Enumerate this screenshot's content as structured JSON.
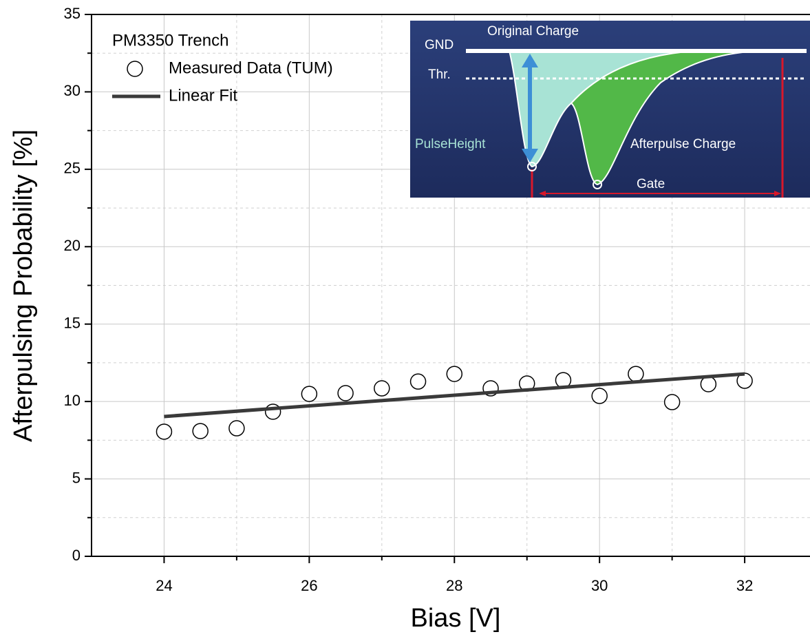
{
  "chart_data": {
    "type": "scatter",
    "xlabel": "Bias [V]",
    "ylabel": "Afterpulsing Probability [%]",
    "legend_title": "PM3350 Trench",
    "xlim": [
      23,
      32.9
    ],
    "ylim": [
      0,
      35
    ],
    "xticks": [
      24,
      26,
      28,
      30,
      32
    ],
    "yticks": [
      0,
      5,
      10,
      15,
      20,
      25,
      30,
      35
    ],
    "xminor": [
      25,
      27,
      29,
      31
    ],
    "yminor": [
      2.5,
      7.5,
      12.5,
      17.5,
      22.5,
      27.5,
      32.5
    ],
    "grid": true,
    "series": [
      {
        "name": "Measured Data (TUM)",
        "mode": "markers",
        "color": "#000000",
        "x": [
          24,
          24.5,
          25,
          25.5,
          26,
          26.5,
          27,
          27.5,
          28,
          28.5,
          29,
          29.5,
          30,
          30.5,
          31,
          31.5,
          32
        ],
        "values": [
          8.05,
          8.09,
          8.27,
          9.34,
          10.49,
          10.54,
          10.85,
          11.29,
          11.78,
          10.85,
          11.16,
          11.38,
          10.36,
          11.78,
          9.96,
          11.12,
          11.34
        ]
      },
      {
        "name": "Linear Fit",
        "mode": "line",
        "color": "#3a3a3a",
        "x": [
          24,
          32
        ],
        "values": [
          9.03,
          11.78
        ]
      }
    ]
  },
  "inset": {
    "original_charge": "Original Charge",
    "gnd": "GND",
    "thr": "Thr.",
    "pulse_height": "PulseHeight",
    "afterpulse_charge": "Afterpulse Charge",
    "gate": "Gate"
  }
}
